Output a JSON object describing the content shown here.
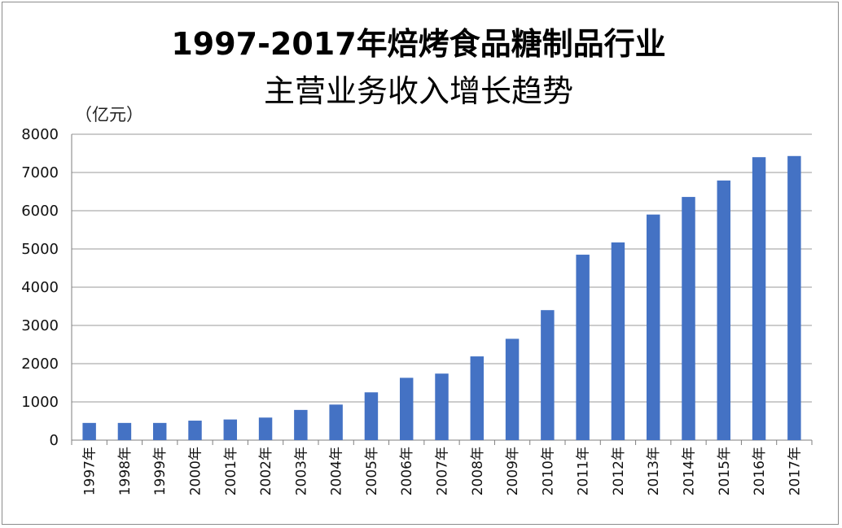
{
  "chart_data": {
    "type": "bar",
    "title": "1997-2017年焙烤食品糖制品行业",
    "subtitle": "主营业务收入增长趋势",
    "ylabel": "（亿元）",
    "xlabel": "",
    "categories": [
      "1997年",
      "1998年",
      "1999年",
      "2000年",
      "2001年",
      "2002年",
      "2003年",
      "2004年",
      "2005年",
      "2006年",
      "2007年",
      "2008年",
      "2009年",
      "2010年",
      "2011年",
      "2012年",
      "2013年",
      "2014年",
      "2015年",
      "2016年",
      "2017年"
    ],
    "values": [
      450,
      450,
      450,
      510,
      540,
      590,
      790,
      930,
      1250,
      1630,
      1740,
      2190,
      2650,
      3400,
      4850,
      5170,
      5900,
      6360,
      6790,
      7400,
      7430
    ],
    "ylim": [
      0,
      8000
    ],
    "yticks": [
      0,
      1000,
      2000,
      3000,
      4000,
      5000,
      6000,
      7000,
      8000
    ],
    "grid": true,
    "legend": "none",
    "bar_color": "#4472c4"
  }
}
